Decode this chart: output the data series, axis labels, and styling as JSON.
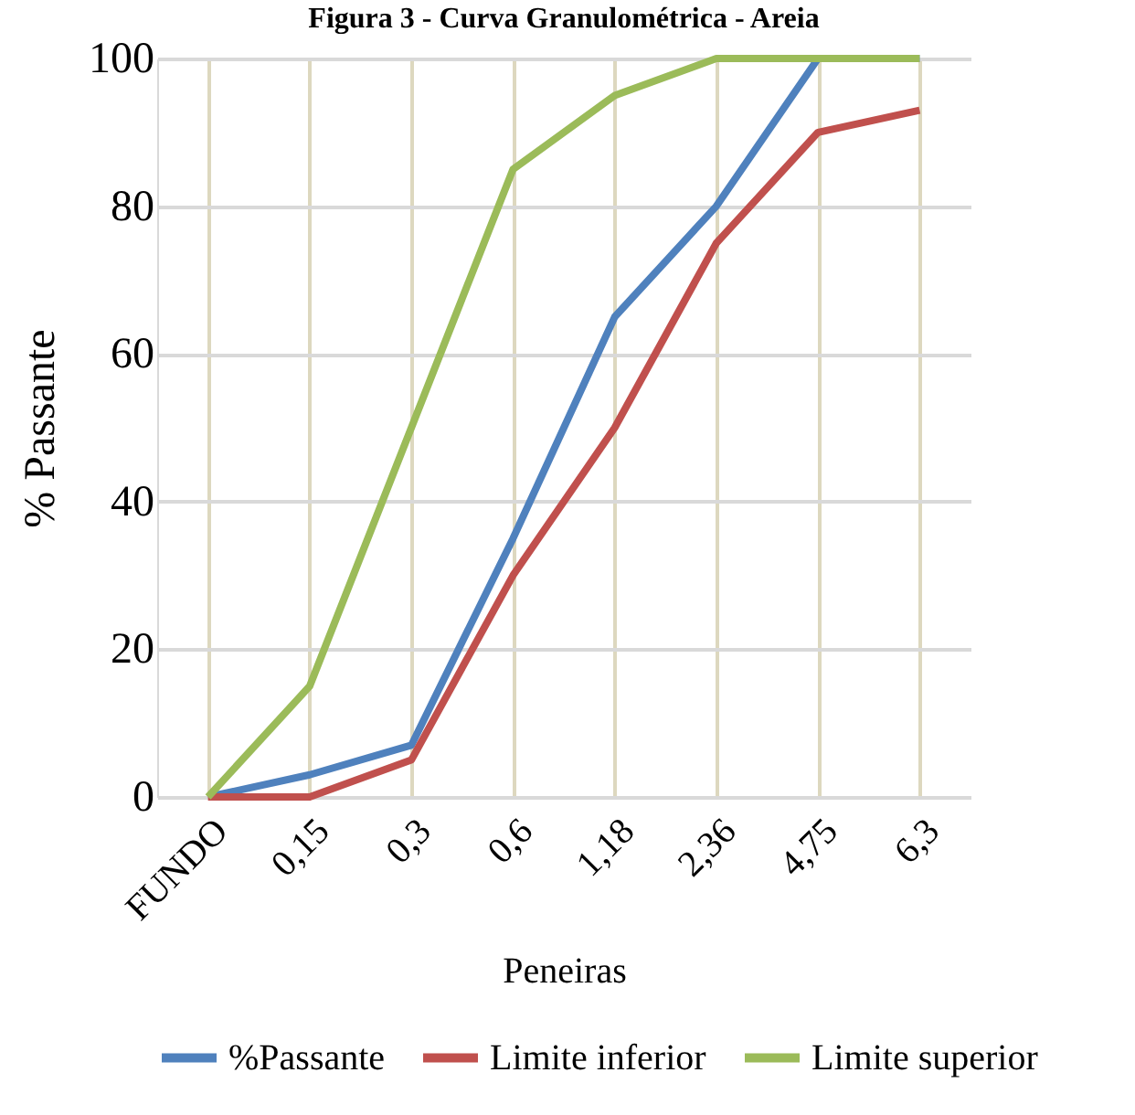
{
  "chart_data": {
    "type": "line",
    "title": "Figura 3 - Curva Granulométrica - Areia",
    "xlabel": "Peneiras",
    "ylabel": "% Passante",
    "categories": [
      "FUNDO",
      "0,15",
      "0,3",
      "0,6",
      "1,18",
      "2,36",
      "4,75",
      "6,3"
    ],
    "series": [
      {
        "name": "%Passante",
        "color": "#4f81bd",
        "values": [
          0,
          3,
          7,
          35,
          65,
          80,
          100,
          100
        ]
      },
      {
        "name": "Limite inferior",
        "color": "#c0504d",
        "values": [
          0,
          0,
          5,
          30,
          50,
          75,
          90,
          93
        ]
      },
      {
        "name": "Limite superior",
        "color": "#9bbb59",
        "values": [
          0,
          15,
          50,
          85,
          95,
          100,
          100,
          100
        ]
      }
    ],
    "ylim": [
      0,
      100
    ],
    "yticks": [
      0,
      20,
      40,
      60,
      80,
      100
    ],
    "grid": true,
    "legend": "bottom",
    "marker": "none",
    "line_style": "solid"
  }
}
